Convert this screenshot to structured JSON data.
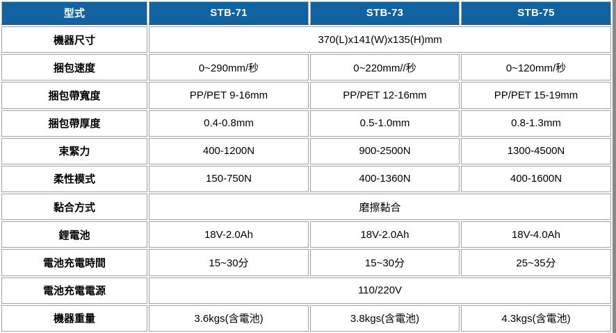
{
  "theme": {
    "header-bg": "#1162a0",
    "header-accent": "#30587c",
    "header-text": "#ffffff",
    "cell-border": "#a3a3a3",
    "outer-edge": "#888888",
    "body-text": "#000000"
  },
  "table": {
    "header": {
      "type_label": "型式",
      "models": [
        "STB-71",
        "STB-73",
        "STB-75"
      ]
    },
    "rows": [
      {
        "label": "機器尺寸",
        "merged": true,
        "value": "370(L)x141(W)x135(H)mm"
      },
      {
        "label": "捆包速度",
        "merged": false,
        "values": [
          "0~290mm/秒",
          "0~220mm//秒",
          "0~120mm/秒"
        ]
      },
      {
        "label": "捆包帶寬度",
        "merged": false,
        "values": [
          "PP/PET 9-16mm",
          "PP/PET 12-16mm",
          "PP/PET 15-19mm"
        ]
      },
      {
        "label": "捆包帶厚度",
        "merged": false,
        "values": [
          "0.4-0.8mm",
          "0.5-1.0mm",
          "0.8-1.3mm"
        ]
      },
      {
        "label": "束緊力",
        "merged": false,
        "values": [
          "400-1200N",
          "900-2500N",
          "1300-4500N"
        ]
      },
      {
        "label": "柔性模式",
        "merged": false,
        "values": [
          "150-750N",
          "400-1360N",
          "400-1600N"
        ]
      },
      {
        "label": "黏合方式",
        "merged": true,
        "value": "磨擦黏合"
      },
      {
        "label": "鋰電池",
        "merged": false,
        "values": [
          "18V-2.0Ah",
          "18V-2.0Ah",
          "18V-4.0Ah"
        ]
      },
      {
        "label": "電池充電時間",
        "merged": false,
        "values": [
          "15~30分",
          "15~30分",
          "25~35分"
        ]
      },
      {
        "label": "電池充電電源",
        "merged": true,
        "value": "110/220V"
      },
      {
        "label": "機器重量",
        "merged": false,
        "values": [
          "3.6kgs(含電池)",
          "3.8kgs(含電池)",
          "4.3kgs(含電池)"
        ]
      }
    ]
  }
}
